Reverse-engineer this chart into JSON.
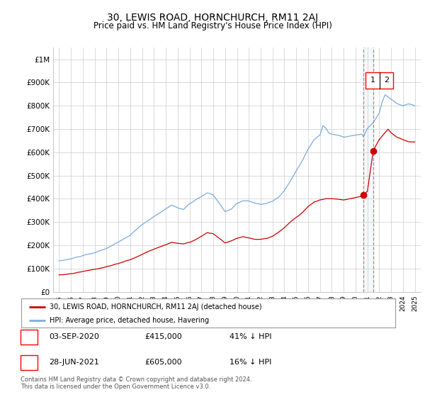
{
  "title": "30, LEWIS ROAD, HORNCHURCH, RM11 2AJ",
  "subtitle": "Price paid vs. HM Land Registry's House Price Index (HPI)",
  "title_fontsize": 10,
  "subtitle_fontsize": 8.5,
  "background_color": "#ffffff",
  "grid_color": "#cccccc",
  "ylim": [
    0,
    1050000
  ],
  "yticks": [
    0,
    100000,
    200000,
    300000,
    400000,
    500000,
    600000,
    700000,
    800000,
    900000,
    1000000
  ],
  "ytick_labels": [
    "£0",
    "£100K",
    "£200K",
    "£300K",
    "£400K",
    "£500K",
    "£600K",
    "£700K",
    "£800K",
    "£900K",
    "£1M"
  ],
  "hpi_color": "#7aace0",
  "price_color": "#cc0000",
  "dashed_line_color": "#dd6666",
  "legend_label_price": "30, LEWIS ROAD, HORNCHURCH, RM11 2AJ (detached house)",
  "legend_label_hpi": "HPI: Average price, detached house, Havering",
  "table_rows": [
    {
      "num": "1",
      "date": "03-SEP-2020",
      "price": "£415,000",
      "pct": "41% ↓ HPI"
    },
    {
      "num": "2",
      "date": "28-JUN-2021",
      "price": "£605,000",
      "pct": "16% ↓ HPI"
    }
  ],
  "footer": "Contains HM Land Registry data © Crown copyright and database right 2024.\nThis data is licensed under the Open Government Licence v3.0.",
  "sale_point_1_year": 2020.67,
  "sale_point_1_price": 415000,
  "sale_point_2_year": 2021.5,
  "sale_point_2_price": 605000,
  "xlim_left": 1994.5,
  "xlim_right": 2025.5
}
